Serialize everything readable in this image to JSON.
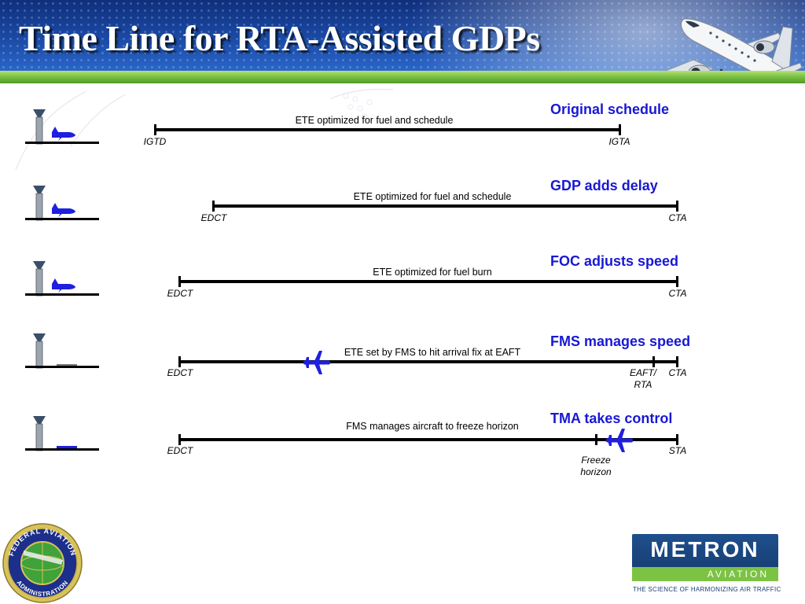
{
  "title": "Time Line for RTA-Assisted GDPs",
  "colors": {
    "heading_blue": "#1818d4",
    "plane_blue": "#1f1fe0",
    "header_blue": "#1a4aa6",
    "band_green": "#7cc243",
    "metron_blue": "#1f4f8c"
  },
  "rows": [
    {
      "heading": "Original schedule",
      "bar_label": "ETE optimized for fuel and schedule",
      "start_label": "IGTD",
      "end_label": "IGTA",
      "icon": "tower-with-aircraft-icon"
    },
    {
      "heading": "GDP adds delay",
      "bar_label": "ETE optimized for fuel and schedule",
      "start_label": "EDCT",
      "end_label": "CTA",
      "icon": "tower-with-aircraft-icon"
    },
    {
      "heading": "FOC adjusts speed",
      "bar_label": "ETE optimized for fuel burn",
      "start_label": "EDCT",
      "end_label": "CTA",
      "icon": "tower-with-aircraft-icon"
    },
    {
      "heading": "FMS manages speed",
      "bar_label": "ETE set by FMS to hit arrival fix at EAFT",
      "start_label": "EDCT",
      "inner_label_line1": "EAFT/",
      "inner_label_line2": "RTA",
      "end_label": "CTA",
      "icon": "tower-empty-runway-icon",
      "aircraft_icon": "airplane-icon"
    },
    {
      "heading": "TMA takes control",
      "bar_label": "FMS manages aircraft to freeze horizon",
      "start_label": "EDCT",
      "inner_label_line1": "Freeze",
      "inner_label_line2": "horizon",
      "end_label": "STA",
      "icon": "tower-with-aircraft-icon",
      "aircraft_icon": "airplane-icon"
    }
  ],
  "logos": {
    "faa_seal_text_top": "FEDERAL AVIATION",
    "faa_seal_text_bottom": "ADMINISTRATION",
    "metron_word": "METRON",
    "metron_sub": "AVIATION",
    "metron_tagline": "THE SCIENCE OF HARMONIZING AIR TRAFFIC"
  }
}
